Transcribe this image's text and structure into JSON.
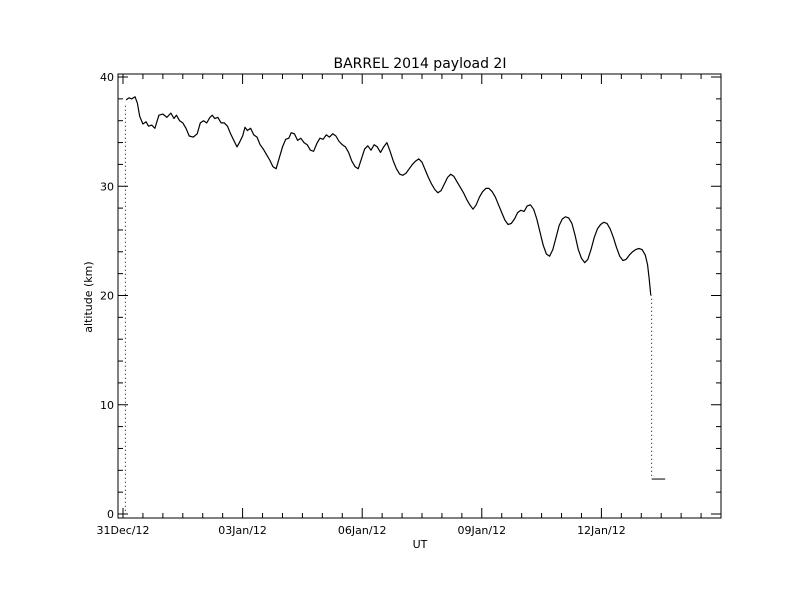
{
  "chart_data": {
    "type": "line",
    "title": "BARREL 2014 payload 2I",
    "xlabel": "UT",
    "ylabel": "altitude (km)",
    "ylim": [
      0,
      40
    ],
    "xlim": [
      0,
      15
    ],
    "x_ticks": [
      {
        "value": 0,
        "label": "31Dec/12"
      },
      {
        "value": 3,
        "label": "03Jan/12"
      },
      {
        "value": 6,
        "label": "06Jan/12"
      },
      {
        "value": 9,
        "label": "09Jan/12"
      },
      {
        "value": 12,
        "label": "12Jan/12"
      }
    ],
    "y_ticks": [
      0,
      10,
      20,
      30,
      40
    ],
    "grid": false,
    "series": [
      {
        "color": "#000000",
        "points": [
          [
            0.08,
            37.9
          ],
          [
            0.15,
            38.1
          ],
          [
            0.22,
            38.0
          ],
          [
            0.3,
            38.2
          ],
          [
            0.36,
            37.6
          ],
          [
            0.42,
            36.4
          ],
          [
            0.5,
            35.7
          ],
          [
            0.58,
            35.9
          ],
          [
            0.64,
            35.5
          ],
          [
            0.72,
            35.6
          ],
          [
            0.8,
            35.3
          ],
          [
            0.9,
            36.5
          ],
          [
            1.0,
            36.6
          ],
          [
            1.1,
            36.3
          ],
          [
            1.2,
            36.7
          ],
          [
            1.28,
            36.2
          ],
          [
            1.34,
            36.5
          ],
          [
            1.42,
            36.0
          ],
          [
            1.5,
            35.8
          ],
          [
            1.58,
            35.3
          ],
          [
            1.66,
            34.6
          ],
          [
            1.76,
            34.5
          ],
          [
            1.86,
            34.8
          ],
          [
            1.94,
            35.8
          ],
          [
            2.02,
            36.0
          ],
          [
            2.1,
            35.8
          ],
          [
            2.18,
            36.3
          ],
          [
            2.24,
            36.5
          ],
          [
            2.3,
            36.2
          ],
          [
            2.38,
            36.3
          ],
          [
            2.46,
            35.8
          ],
          [
            2.54,
            35.8
          ],
          [
            2.62,
            35.5
          ],
          [
            2.7,
            34.8
          ],
          [
            2.78,
            34.2
          ],
          [
            2.86,
            33.6
          ],
          [
            2.92,
            34.0
          ],
          [
            3.0,
            34.6
          ],
          [
            3.06,
            35.4
          ],
          [
            3.12,
            35.1
          ],
          [
            3.2,
            35.3
          ],
          [
            3.28,
            34.7
          ],
          [
            3.36,
            34.5
          ],
          [
            3.44,
            33.8
          ],
          [
            3.52,
            33.4
          ],
          [
            3.6,
            32.9
          ],
          [
            3.68,
            32.4
          ],
          [
            3.76,
            31.8
          ],
          [
            3.84,
            31.6
          ],
          [
            3.92,
            32.6
          ],
          [
            4.0,
            33.6
          ],
          [
            4.08,
            34.3
          ],
          [
            4.16,
            34.4
          ],
          [
            4.22,
            34.9
          ],
          [
            4.3,
            34.8
          ],
          [
            4.38,
            34.2
          ],
          [
            4.46,
            34.4
          ],
          [
            4.54,
            34.0
          ],
          [
            4.62,
            33.8
          ],
          [
            4.7,
            33.3
          ],
          [
            4.78,
            33.2
          ],
          [
            4.86,
            33.9
          ],
          [
            4.94,
            34.4
          ],
          [
            5.02,
            34.3
          ],
          [
            5.1,
            34.7
          ],
          [
            5.18,
            34.5
          ],
          [
            5.26,
            34.8
          ],
          [
            5.34,
            34.6
          ],
          [
            5.42,
            34.1
          ],
          [
            5.5,
            33.8
          ],
          [
            5.58,
            33.6
          ],
          [
            5.66,
            33.1
          ],
          [
            5.74,
            32.3
          ],
          [
            5.82,
            31.8
          ],
          [
            5.9,
            31.6
          ],
          [
            5.98,
            32.5
          ],
          [
            6.06,
            33.4
          ],
          [
            6.14,
            33.7
          ],
          [
            6.22,
            33.3
          ],
          [
            6.3,
            33.8
          ],
          [
            6.38,
            33.6
          ],
          [
            6.46,
            33.1
          ],
          [
            6.54,
            33.6
          ],
          [
            6.62,
            34.0
          ],
          [
            6.7,
            33.2
          ],
          [
            6.78,
            32.3
          ],
          [
            6.86,
            31.6
          ],
          [
            6.94,
            31.1
          ],
          [
            7.02,
            31.0
          ],
          [
            7.1,
            31.2
          ],
          [
            7.18,
            31.6
          ],
          [
            7.26,
            32.0
          ],
          [
            7.34,
            32.3
          ],
          [
            7.42,
            32.5
          ],
          [
            7.5,
            32.2
          ],
          [
            7.58,
            31.5
          ],
          [
            7.66,
            30.8
          ],
          [
            7.74,
            30.2
          ],
          [
            7.82,
            29.7
          ],
          [
            7.9,
            29.4
          ],
          [
            7.98,
            29.6
          ],
          [
            8.06,
            30.2
          ],
          [
            8.14,
            30.8
          ],
          [
            8.22,
            31.1
          ],
          [
            8.3,
            30.9
          ],
          [
            8.38,
            30.4
          ],
          [
            8.46,
            29.9
          ],
          [
            8.54,
            29.4
          ],
          [
            8.62,
            28.8
          ],
          [
            8.7,
            28.3
          ],
          [
            8.78,
            27.9
          ],
          [
            8.86,
            28.3
          ],
          [
            8.94,
            29.0
          ],
          [
            9.02,
            29.5
          ],
          [
            9.1,
            29.8
          ],
          [
            9.18,
            29.8
          ],
          [
            9.26,
            29.5
          ],
          [
            9.34,
            29.0
          ],
          [
            9.42,
            28.3
          ],
          [
            9.5,
            27.6
          ],
          [
            9.58,
            26.9
          ],
          [
            9.66,
            26.5
          ],
          [
            9.74,
            26.6
          ],
          [
            9.82,
            27.0
          ],
          [
            9.9,
            27.6
          ],
          [
            9.98,
            27.8
          ],
          [
            10.06,
            27.7
          ],
          [
            10.14,
            28.2
          ],
          [
            10.22,
            28.3
          ],
          [
            10.3,
            27.9
          ],
          [
            10.38,
            27.0
          ],
          [
            10.46,
            25.8
          ],
          [
            10.54,
            24.6
          ],
          [
            10.62,
            23.8
          ],
          [
            10.7,
            23.6
          ],
          [
            10.78,
            24.2
          ],
          [
            10.86,
            25.3
          ],
          [
            10.94,
            26.4
          ],
          [
            11.02,
            27.0
          ],
          [
            11.1,
            27.2
          ],
          [
            11.18,
            27.1
          ],
          [
            11.26,
            26.6
          ],
          [
            11.34,
            25.5
          ],
          [
            11.42,
            24.2
          ],
          [
            11.5,
            23.4
          ],
          [
            11.58,
            23.0
          ],
          [
            11.66,
            23.3
          ],
          [
            11.74,
            24.2
          ],
          [
            11.82,
            25.3
          ],
          [
            11.9,
            26.1
          ],
          [
            11.98,
            26.5
          ],
          [
            12.06,
            26.7
          ],
          [
            12.14,
            26.6
          ],
          [
            12.22,
            26.1
          ],
          [
            12.3,
            25.3
          ],
          [
            12.38,
            24.4
          ],
          [
            12.46,
            23.6
          ],
          [
            12.54,
            23.2
          ],
          [
            12.62,
            23.3
          ],
          [
            12.7,
            23.7
          ],
          [
            12.78,
            24.0
          ],
          [
            12.86,
            24.2
          ],
          [
            12.94,
            24.3
          ],
          [
            13.02,
            24.2
          ],
          [
            13.1,
            23.7
          ],
          [
            13.16,
            22.8
          ],
          [
            13.2,
            21.5
          ],
          [
            13.24,
            20.0
          ]
        ]
      }
    ],
    "dotted_traces": [
      {
        "x": 0.06,
        "y_from": 0.3,
        "y_to": 37.5
      },
      {
        "x": 13.26,
        "y_from": 3.5,
        "y_to": 20.0
      }
    ],
    "tail_segment": {
      "x_from": 13.26,
      "x_to": 13.6,
      "y": 3.2
    }
  }
}
